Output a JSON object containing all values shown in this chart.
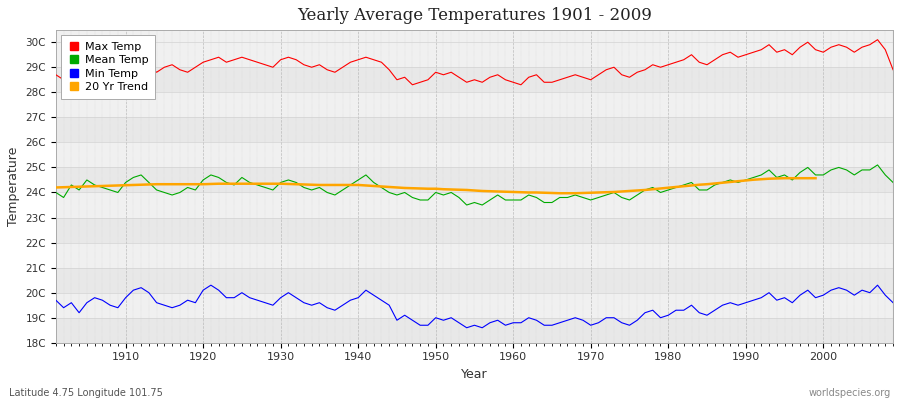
{
  "title": "Yearly Average Temperatures 1901 - 2009",
  "xlabel": "Year",
  "ylabel": "Temperature",
  "subtitle": "Latitude 4.75 Longitude 101.75",
  "credit": "worldspecies.org",
  "bg_color": "#ffffff",
  "plot_bg_color": "#f0f0f0",
  "ylim": [
    18,
    30.5
  ],
  "yticks": [
    18,
    19,
    20,
    21,
    22,
    23,
    24,
    25,
    26,
    27,
    28,
    29,
    30
  ],
  "xlim": [
    1901,
    2009
  ],
  "years": [
    1901,
    1902,
    1903,
    1904,
    1905,
    1906,
    1907,
    1908,
    1909,
    1910,
    1911,
    1912,
    1913,
    1914,
    1915,
    1916,
    1917,
    1918,
    1919,
    1920,
    1921,
    1922,
    1923,
    1924,
    1925,
    1926,
    1927,
    1928,
    1929,
    1930,
    1931,
    1932,
    1933,
    1934,
    1935,
    1936,
    1937,
    1938,
    1939,
    1940,
    1941,
    1942,
    1943,
    1944,
    1945,
    1946,
    1947,
    1948,
    1949,
    1950,
    1951,
    1952,
    1953,
    1954,
    1955,
    1956,
    1957,
    1958,
    1959,
    1960,
    1961,
    1962,
    1963,
    1964,
    1965,
    1966,
    1967,
    1968,
    1969,
    1970,
    1971,
    1972,
    1973,
    1974,
    1975,
    1976,
    1977,
    1978,
    1979,
    1980,
    1981,
    1982,
    1983,
    1984,
    1985,
    1986,
    1987,
    1988,
    1989,
    1990,
    1991,
    1992,
    1993,
    1994,
    1995,
    1996,
    1997,
    1998,
    1999,
    2000,
    2001,
    2002,
    2003,
    2004,
    2005,
    2006,
    2007,
    2008,
    2009
  ],
  "max_temp": [
    28.7,
    28.5,
    29.3,
    29.1,
    29.2,
    29.0,
    28.9,
    28.8,
    29.0,
    29.1,
    29.3,
    29.2,
    29.0,
    28.8,
    29.0,
    29.1,
    28.9,
    28.8,
    29.0,
    29.2,
    29.3,
    29.4,
    29.2,
    29.3,
    29.4,
    29.3,
    29.2,
    29.1,
    29.0,
    29.3,
    29.4,
    29.3,
    29.1,
    29.0,
    29.1,
    28.9,
    28.8,
    29.0,
    29.2,
    29.3,
    29.4,
    29.3,
    29.2,
    28.9,
    28.5,
    28.6,
    28.3,
    28.4,
    28.5,
    28.8,
    28.7,
    28.8,
    28.6,
    28.4,
    28.5,
    28.4,
    28.6,
    28.7,
    28.5,
    28.4,
    28.3,
    28.6,
    28.7,
    28.4,
    28.4,
    28.5,
    28.6,
    28.7,
    28.6,
    28.5,
    28.7,
    28.9,
    29.0,
    28.7,
    28.6,
    28.8,
    28.9,
    29.1,
    29.0,
    29.1,
    29.2,
    29.3,
    29.5,
    29.2,
    29.1,
    29.3,
    29.5,
    29.6,
    29.4,
    29.5,
    29.6,
    29.7,
    29.9,
    29.6,
    29.7,
    29.5,
    29.8,
    30.0,
    29.7,
    29.6,
    29.8,
    29.9,
    29.8,
    29.6,
    29.8,
    29.9,
    30.1,
    29.7,
    28.9
  ],
  "mean_temp": [
    24.0,
    23.8,
    24.3,
    24.1,
    24.5,
    24.3,
    24.2,
    24.1,
    24.0,
    24.4,
    24.6,
    24.7,
    24.4,
    24.1,
    24.0,
    23.9,
    24.0,
    24.2,
    24.1,
    24.5,
    24.7,
    24.6,
    24.4,
    24.3,
    24.6,
    24.4,
    24.3,
    24.2,
    24.1,
    24.4,
    24.5,
    24.4,
    24.2,
    24.1,
    24.2,
    24.0,
    23.9,
    24.1,
    24.3,
    24.5,
    24.7,
    24.4,
    24.2,
    24.0,
    23.9,
    24.0,
    23.8,
    23.7,
    23.7,
    24.0,
    23.9,
    24.0,
    23.8,
    23.5,
    23.6,
    23.5,
    23.7,
    23.9,
    23.7,
    23.7,
    23.7,
    23.9,
    23.8,
    23.6,
    23.6,
    23.8,
    23.8,
    23.9,
    23.8,
    23.7,
    23.8,
    23.9,
    24.0,
    23.8,
    23.7,
    23.9,
    24.1,
    24.2,
    24.0,
    24.1,
    24.2,
    24.3,
    24.4,
    24.1,
    24.1,
    24.3,
    24.4,
    24.5,
    24.4,
    24.5,
    24.6,
    24.7,
    24.9,
    24.6,
    24.7,
    24.5,
    24.8,
    25.0,
    24.7,
    24.7,
    24.9,
    25.0,
    24.9,
    24.7,
    24.9,
    24.9,
    25.1,
    24.7,
    24.4
  ],
  "min_temp": [
    19.7,
    19.4,
    19.6,
    19.2,
    19.6,
    19.8,
    19.7,
    19.5,
    19.4,
    19.8,
    20.1,
    20.2,
    20.0,
    19.6,
    19.5,
    19.4,
    19.5,
    19.7,
    19.6,
    20.1,
    20.3,
    20.1,
    19.8,
    19.8,
    20.0,
    19.8,
    19.7,
    19.6,
    19.5,
    19.8,
    20.0,
    19.8,
    19.6,
    19.5,
    19.6,
    19.4,
    19.3,
    19.5,
    19.7,
    19.8,
    20.1,
    19.9,
    19.7,
    19.5,
    18.9,
    19.1,
    18.9,
    18.7,
    18.7,
    19.0,
    18.9,
    19.0,
    18.8,
    18.6,
    18.7,
    18.6,
    18.8,
    18.9,
    18.7,
    18.8,
    18.8,
    19.0,
    18.9,
    18.7,
    18.7,
    18.8,
    18.9,
    19.0,
    18.9,
    18.7,
    18.8,
    19.0,
    19.0,
    18.8,
    18.7,
    18.9,
    19.2,
    19.3,
    19.0,
    19.1,
    19.3,
    19.3,
    19.5,
    19.2,
    19.1,
    19.3,
    19.5,
    19.6,
    19.5,
    19.6,
    19.7,
    19.8,
    20.0,
    19.7,
    19.8,
    19.6,
    19.9,
    20.1,
    19.8,
    19.9,
    20.1,
    20.2,
    20.1,
    19.9,
    20.1,
    20.0,
    20.3,
    19.9,
    19.6
  ],
  "trend_20yr": [
    24.2,
    24.21,
    24.22,
    24.23,
    24.24,
    24.25,
    24.26,
    24.27,
    24.28,
    24.29,
    24.3,
    24.31,
    24.32,
    24.33,
    24.33,
    24.33,
    24.33,
    24.33,
    24.33,
    24.33,
    24.34,
    24.35,
    24.35,
    24.35,
    24.35,
    24.35,
    24.35,
    24.35,
    24.35,
    24.35,
    24.34,
    24.33,
    24.32,
    24.31,
    24.3,
    24.3,
    24.3,
    24.3,
    24.3,
    24.3,
    24.28,
    24.26,
    24.24,
    24.22,
    24.2,
    24.18,
    24.17,
    24.16,
    24.15,
    24.15,
    24.13,
    24.12,
    24.11,
    24.1,
    24.08,
    24.06,
    24.05,
    24.04,
    24.03,
    24.02,
    24.01,
    24.0,
    24.0,
    23.99,
    23.98,
    23.97,
    23.97,
    23.97,
    23.98,
    23.99,
    24.0,
    24.01,
    24.02,
    24.04,
    24.06,
    24.08,
    24.1,
    24.13,
    24.16,
    24.19,
    24.22,
    24.25,
    24.28,
    24.31,
    24.33,
    24.36,
    24.39,
    24.42,
    24.45,
    24.48,
    24.51,
    24.53,
    24.55,
    24.56,
    24.57,
    24.57,
    24.57,
    24.57,
    24.57,
    null,
    null,
    null,
    null,
    null,
    null,
    null,
    null,
    null,
    null
  ],
  "line_colors": {
    "max": "#ff0000",
    "mean": "#00aa00",
    "min": "#0000ff",
    "trend": "#ffa500"
  },
  "legend_labels": [
    "Max Temp",
    "Mean Temp",
    "Min Temp",
    "20 Yr Trend"
  ],
  "legend_colors": [
    "#ff0000",
    "#00aa00",
    "#0000ff",
    "#ffa500"
  ]
}
